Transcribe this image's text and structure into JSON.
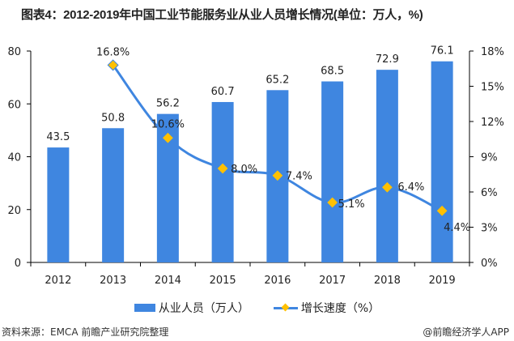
{
  "title": "图表4：2012-2019年中国工业节能服务业从业人员增长情况(单位：万人，%)",
  "chart_data": {
    "type": "bar+line",
    "title": "图表4：2012-2019年中国工业节能服务业从业人员增长情况(单位：万人，%)",
    "categories": [
      "2012",
      "2013",
      "2014",
      "2015",
      "2016",
      "2017",
      "2018",
      "2019"
    ],
    "series": [
      {
        "name": "从业人员（万人）",
        "type": "bar",
        "axis": "left",
        "color": "#3f86e0",
        "values": [
          43.5,
          50.8,
          56.2,
          60.7,
          65.2,
          68.5,
          72.9,
          76.1
        ],
        "labels": [
          "43.5",
          "50.8",
          "56.2",
          "60.7",
          "65.2",
          "68.5",
          "72.9",
          "76.1"
        ]
      },
      {
        "name": "增长速度（%）",
        "type": "line",
        "axis": "right",
        "color": "#3f86e0",
        "marker_color": "#ffc000",
        "values": [
          null,
          16.8,
          10.6,
          8.0,
          7.4,
          5.1,
          6.4,
          4.4
        ],
        "labels": [
          "",
          "16.8%",
          "10.6%",
          "8.0%",
          "7.4%",
          "5.1%",
          "6.4%",
          "4.4%"
        ]
      }
    ],
    "y_left": {
      "range": [
        0,
        80
      ],
      "ticks": [
        "0",
        "20",
        "40",
        "60",
        "80"
      ]
    },
    "y_right": {
      "range": [
        0,
        18
      ],
      "ticks": [
        "0%",
        "3%",
        "6%",
        "9%",
        "12%",
        "15%",
        "18%"
      ]
    },
    "grid": false,
    "legend_position": "bottom"
  },
  "legend": {
    "bar_label": "从业人员（万人）",
    "line_label": "增长速度（%）"
  },
  "footer": {
    "source": "资料来源：EMCA 前瞻产业研究院整理",
    "brand": "@前瞻经济学人APP"
  }
}
